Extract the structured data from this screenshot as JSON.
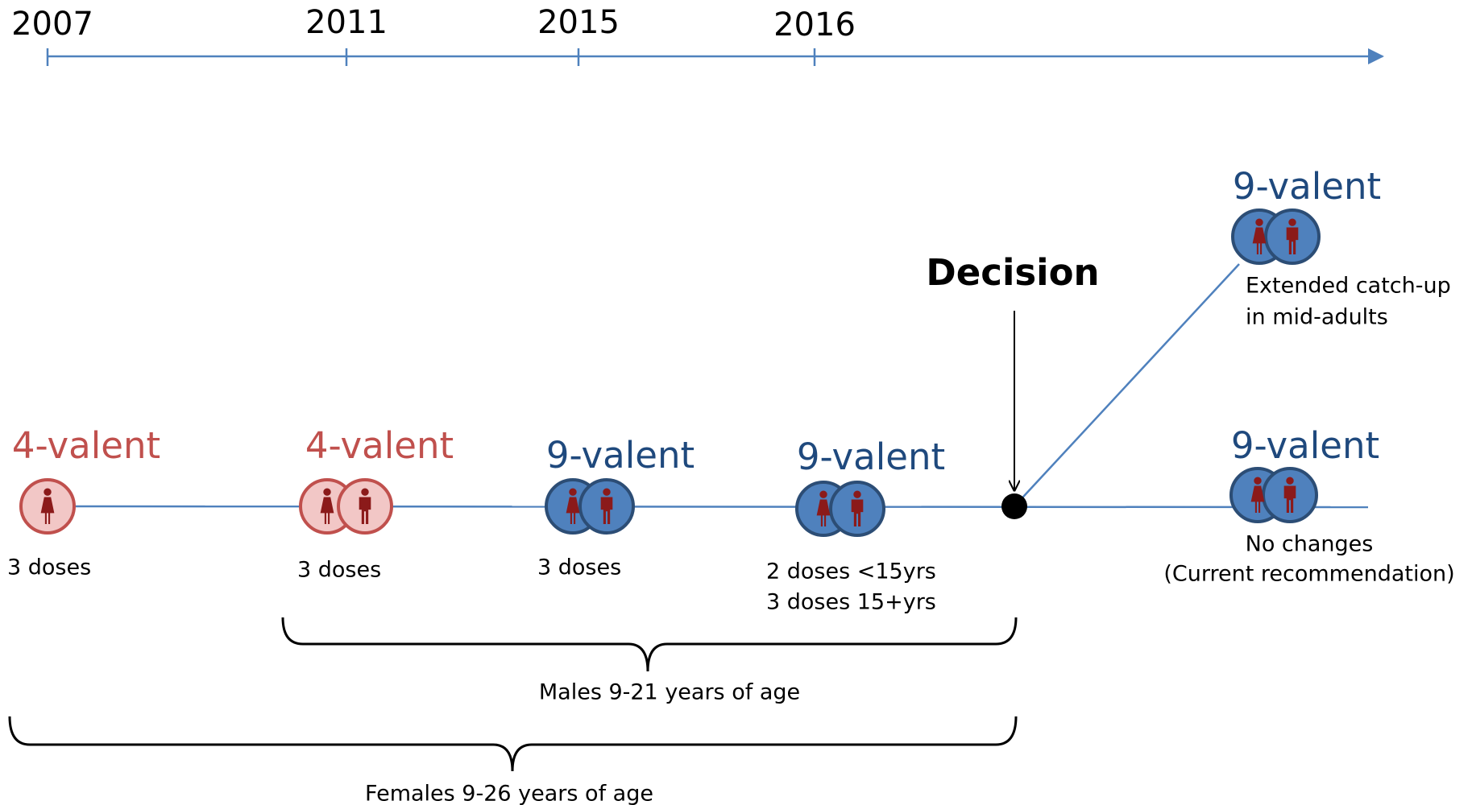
{
  "timeline": {
    "years": [
      "2007",
      "2011",
      "2015",
      "2016"
    ]
  },
  "stages": [
    {
      "vaccine": "4-valent",
      "doses": [
        "3 doses"
      ]
    },
    {
      "vaccine": "4-valent",
      "doses": [
        "3 doses"
      ]
    },
    {
      "vaccine": "9-valent",
      "doses": [
        "3 doses"
      ]
    },
    {
      "vaccine": "9-valent",
      "doses": [
        "2 doses <15yrs",
        "3 doses 15+yrs"
      ]
    }
  ],
  "decision": "Decision",
  "outcomes": [
    {
      "vaccine": "9-valent",
      "description": [
        "Extended catch-up",
        "in mid-adults"
      ]
    },
    {
      "vaccine": "9-valent",
      "description": [
        "No changes",
        "(Current recommendation)"
      ]
    }
  ],
  "groups": [
    "Males 9-21 years of age",
    "Females 9-26 years of age"
  ]
}
